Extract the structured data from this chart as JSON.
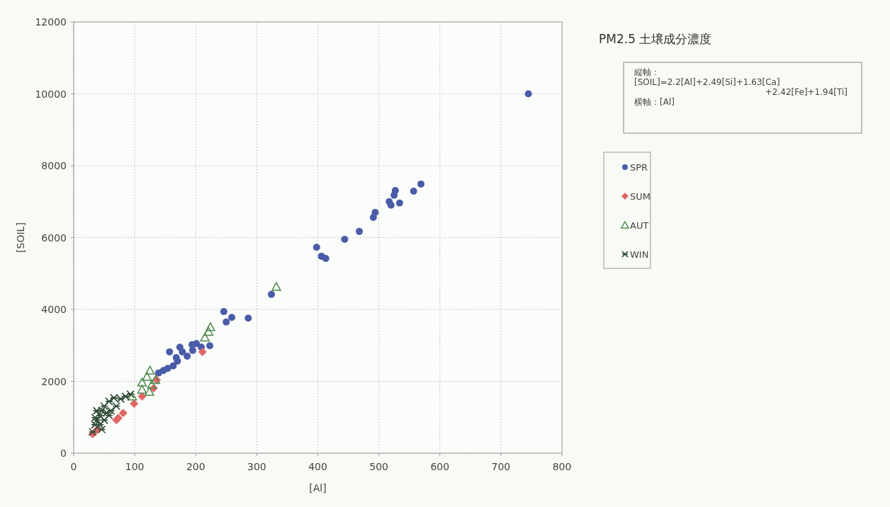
{
  "chart_data": {
    "type": "scatter",
    "title": "PM2.5 土壌成分濃度",
    "xlabel": "[Al]",
    "ylabel": "[SOIL]",
    "annotations": [
      "縦軸：",
      "[SOIL]=2.2[Al]+2.49[Si]+1.63[Ca]",
      "+2.42[Fe]+1.94[Ti]",
      "横軸：[Al]"
    ],
    "xlim": [
      0,
      800
    ],
    "ylim": [
      0,
      12000
    ],
    "xticks": [
      0,
      100,
      200,
      300,
      400,
      500,
      600,
      700,
      800
    ],
    "yticks": [
      0,
      2000,
      4000,
      6000,
      8000,
      10000,
      12000
    ],
    "grid": true,
    "legend": "right",
    "series": [
      {
        "name": "SPR",
        "color": "#4a5ca8",
        "marker": "circle",
        "x": [
          745,
          569,
          557,
          527,
          525,
          517,
          520,
          534,
          494,
          491,
          468,
          444,
          398,
          406,
          413,
          324,
          286,
          246,
          259,
          250,
          157,
          174,
          194,
          201,
          223,
          186,
          178,
          170,
          163,
          154,
          147,
          139,
          168,
          195,
          209
        ],
        "values": [
          10000,
          7490,
          7290,
          7310,
          7180,
          7000,
          6900,
          6960,
          6700,
          6560,
          6170,
          5950,
          5730,
          5480,
          5420,
          4420,
          3760,
          3940,
          3780,
          3650,
          2820,
          2950,
          3020,
          3050,
          2990,
          2700,
          2820,
          2560,
          2430,
          2360,
          2300,
          2230,
          2660,
          2860,
          2950
        ]
      },
      {
        "name": "SUM",
        "color": "#e06666",
        "marker": "diamond",
        "x": [
          211,
          131,
          112,
          99,
          73,
          70,
          31,
          38,
          136,
          81
        ],
        "values": [
          2820,
          1810,
          1580,
          1380,
          980,
          920,
          530,
          650,
          2040,
          1120
        ]
      },
      {
        "name": "AUT",
        "color": "#4f8a4f",
        "marker": "triangle",
        "x": [
          332,
          224,
          221,
          215,
          125,
          120,
          112,
          112,
          128,
          134,
          124,
          96
        ],
        "values": [
          4630,
          3510,
          3380,
          3220,
          2300,
          2130,
          1970,
          1770,
          1910,
          2040,
          1710,
          1580
        ]
      },
      {
        "name": "WIN",
        "color": "#2e4a36",
        "marker": "cross",
        "x": [
          31,
          35,
          38,
          43,
          46,
          50,
          58,
          66,
          77,
          85,
          54,
          61,
          43,
          50,
          58,
          46,
          70,
          93,
          38,
          35
        ],
        "values": [
          590,
          790,
          920,
          1050,
          1180,
          1310,
          1440,
          1540,
          1510,
          1580,
          1120,
          1180,
          790,
          920,
          1050,
          660,
          1310,
          1640,
          1180,
          990
        ]
      }
    ]
  }
}
